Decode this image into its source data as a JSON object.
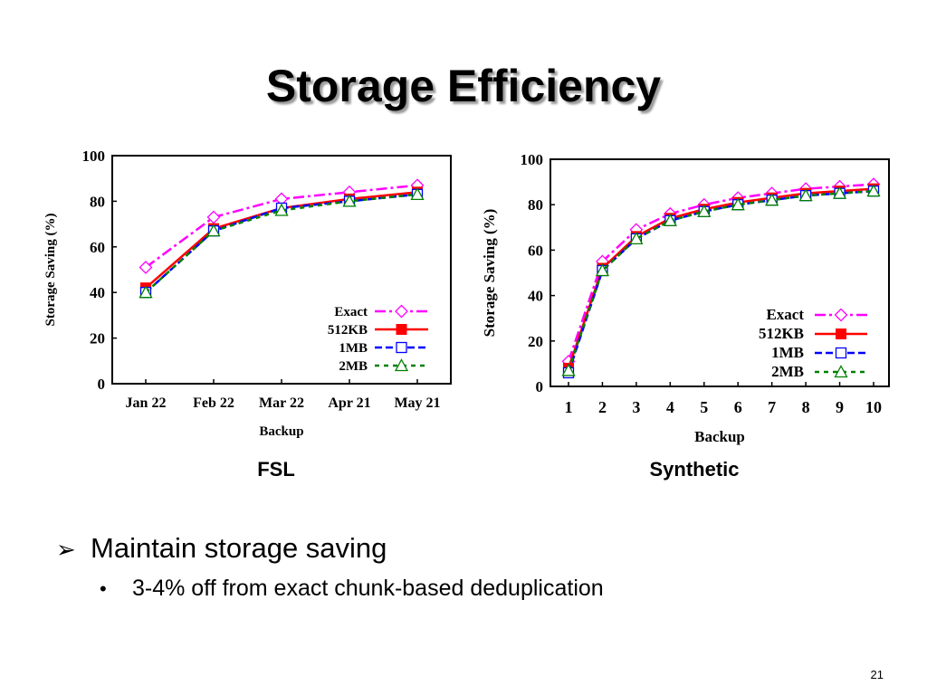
{
  "slide": {
    "title": "Storage Efficiency",
    "bullet": "Maintain storage saving",
    "sub_bullet": "3-4% off from exact chunk-based deduplication",
    "page_number": "21"
  },
  "colors": {
    "exact": "#ff00ff",
    "512KB": "#ff0000",
    "1MB": "#0000ff",
    "2MB": "#008000",
    "line_black": "#000000"
  },
  "chart_data": [
    {
      "type": "line",
      "caption": "FSL",
      "xlabel": "Backup",
      "ylabel": "Storage Saving (%)",
      "categories": [
        "Jan 22",
        "Feb 22",
        "Mar 22",
        "Apr 21",
        "May 21"
      ],
      "ylim": [
        0,
        100
      ],
      "yticks": [
        "0",
        "20",
        "40",
        "60",
        "80",
        "100"
      ],
      "legend_position": "bottom-right",
      "grid": false,
      "series": [
        {
          "name": "Exact",
          "values": [
            51,
            73,
            81,
            84,
            87
          ],
          "marker": "diamond",
          "dash": "dash-dot",
          "color_key": "exact"
        },
        {
          "name": "512KB",
          "values": [
            42,
            68,
            77,
            81,
            84
          ],
          "marker": "filled-square",
          "dash": "solid",
          "color_key": "512KB"
        },
        {
          "name": "1MB",
          "values": [
            40,
            67,
            77,
            80,
            83
          ],
          "marker": "open-square",
          "dash": "dash",
          "color_key": "1MB"
        },
        {
          "name": "2MB",
          "values": [
            40,
            67,
            76,
            80,
            83
          ],
          "marker": "triangle",
          "dash": "short-dash",
          "color_key": "2MB"
        }
      ]
    },
    {
      "type": "line",
      "caption": "Synthetic",
      "xlabel": "Backup",
      "ylabel": "Storage Saving (%)",
      "categories": [
        "1",
        "2",
        "3",
        "4",
        "5",
        "6",
        "7",
        "8",
        "9",
        "10"
      ],
      "ylim": [
        0,
        100
      ],
      "yticks": [
        "0",
        "20",
        "40",
        "60",
        "80",
        "100"
      ],
      "legend_position": "bottom-right",
      "grid": false,
      "series": [
        {
          "name": "Exact",
          "values": [
            11,
            55,
            69,
            76,
            80,
            83,
            85,
            87,
            88,
            89
          ],
          "marker": "diamond",
          "dash": "dash-dot",
          "color_key": "exact"
        },
        {
          "name": "512KB",
          "values": [
            8,
            52,
            66,
            74,
            78,
            81,
            83,
            85,
            86,
            87
          ],
          "marker": "filled-square",
          "dash": "solid",
          "color_key": "512KB"
        },
        {
          "name": "1MB",
          "values": [
            6,
            51,
            65,
            73,
            77,
            80,
            82,
            84,
            85,
            86
          ],
          "marker": "open-square",
          "dash": "dash",
          "color_key": "1MB"
        },
        {
          "name": "2MB",
          "values": [
            7,
            51,
            65,
            73,
            77,
            80,
            82,
            84,
            85,
            86
          ],
          "marker": "triangle",
          "dash": "short-dash",
          "color_key": "2MB"
        }
      ]
    }
  ]
}
